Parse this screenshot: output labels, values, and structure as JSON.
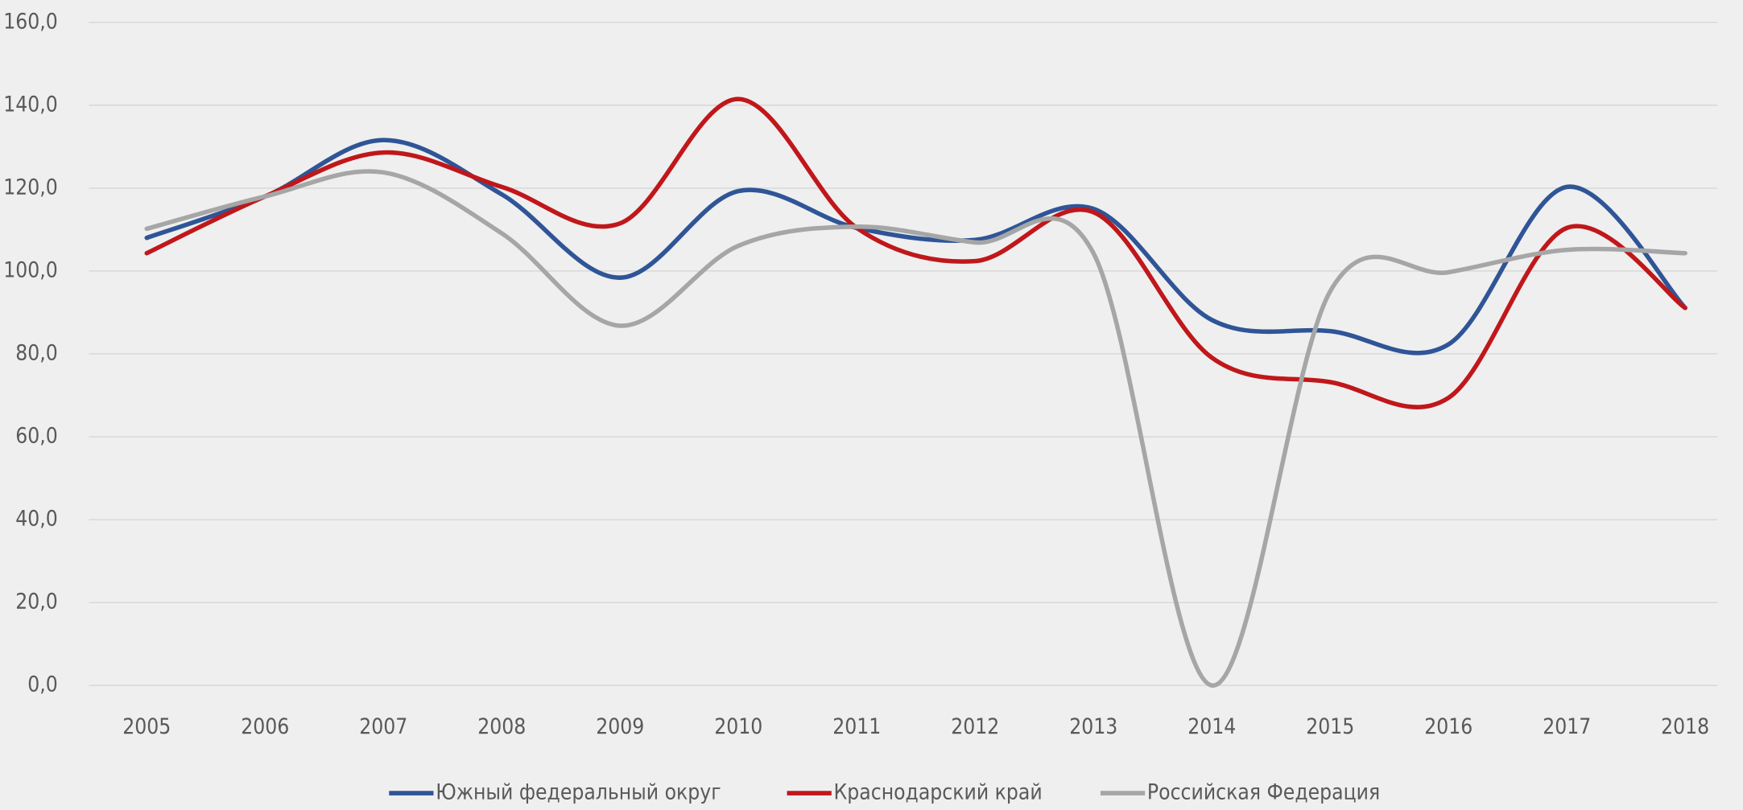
{
  "chart_data": {
    "type": "line",
    "categories": [
      "2005",
      "2006",
      "2007",
      "2008",
      "2009",
      "2010",
      "2011",
      "2012",
      "2013",
      "2014",
      "2015",
      "2016",
      "2017",
      "2018"
    ],
    "series": [
      {
        "name": "Южный федеральный округ",
        "color": "#2f5597",
        "values": [
          108.0,
          118.0,
          131.6,
          118.5,
          98.4,
          119.3,
          110.4,
          107.5,
          115.0,
          88.2,
          85.5,
          82.3,
          120.3,
          91.1
        ]
      },
      {
        "name": "Краснодарский край",
        "color": "#c0171b",
        "values": [
          104.3,
          118.0,
          128.6,
          120.3,
          111.5,
          141.5,
          110.4,
          102.4,
          114.2,
          79.1,
          73.2,
          69.4,
          110.4,
          91.1
        ]
      },
      {
        "name": "Российская Федерация",
        "color": "#a6a6a6",
        "values": [
          110.2,
          118.0,
          123.8,
          109.1,
          86.8,
          106.1,
          110.7,
          106.9,
          104.3,
          0.0,
          95.1,
          99.7,
          105.1,
          104.3
        ]
      }
    ],
    "ylim": [
      0,
      160
    ],
    "yticks": [
      {
        "value": 0,
        "label": "0,0"
      },
      {
        "value": 20,
        "label": "20,0"
      },
      {
        "value": 40,
        "label": "40,0"
      },
      {
        "value": 60,
        "label": "60,0"
      },
      {
        "value": 80,
        "label": "80,0"
      },
      {
        "value": 100,
        "label": "100,0"
      },
      {
        "value": 120,
        "label": "120,0"
      },
      {
        "value": 140,
        "label": "140,0"
      },
      {
        "value": 160,
        "label": "160,0"
      }
    ],
    "grid": true,
    "smooth": true,
    "legend": "bottom"
  }
}
